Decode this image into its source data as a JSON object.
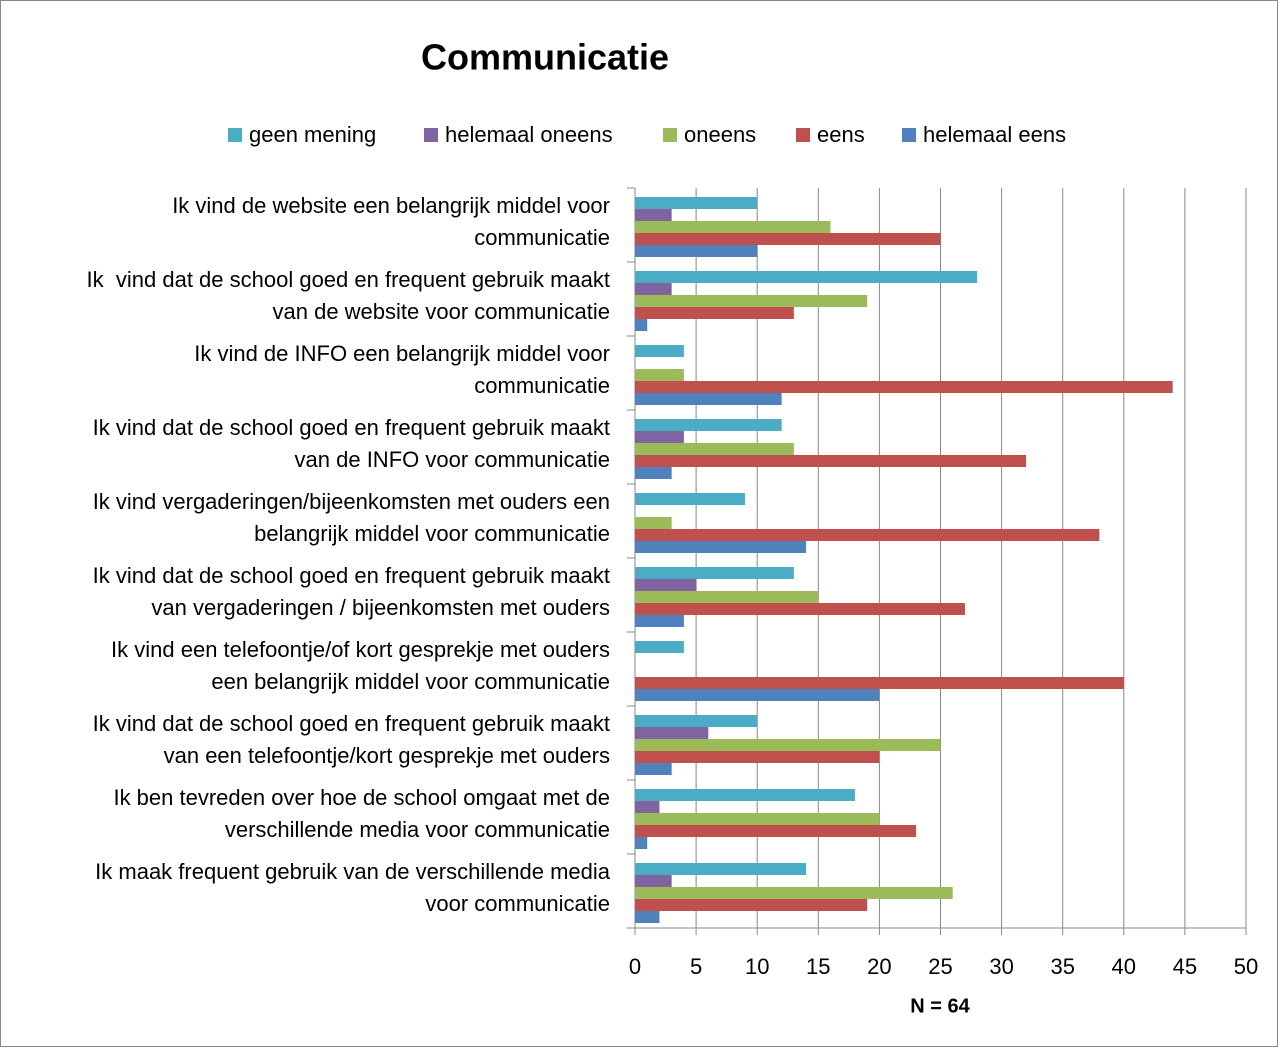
{
  "chart_data": {
    "type": "hbar",
    "title": "Communicatie",
    "x_label": "N = 64",
    "categories": [
      [
        "Ik vind de website een belangrijk middel voor",
        "communicatie"
      ],
      [
        "Ik  vind dat de school goed en frequent gebruik maakt",
        "van de website voor communicatie"
      ],
      [
        "Ik vind de INFO een belangrijk middel voor",
        "communicatie"
      ],
      [
        "Ik vind dat de school goed en frequent gebruik maakt",
        "van de INFO voor communicatie"
      ],
      [
        "Ik vind vergaderingen/bijeenkomsten met ouders een",
        "belangrijk middel voor communicatie"
      ],
      [
        "Ik vind dat de school goed en frequent gebruik maakt",
        "van vergaderingen / bijeenkomsten met ouders"
      ],
      [
        "Ik vind een telefoontje/of kort gesprekje met ouders",
        "een belangrijk middel voor communicatie"
      ],
      [
        "Ik vind dat de school goed en frequent gebruik maakt",
        "van een telefoontje/kort gesprekje met ouders"
      ],
      [
        "Ik ben tevreden over hoe de school omgaat met de",
        "verschillende media voor communicatie"
      ],
      [
        "Ik maak frequent gebruik van de verschillende media",
        "voor communicatie"
      ]
    ],
    "series": [
      {
        "name": "geen mening",
        "color": "#4bacc6",
        "values": [
          10,
          28,
          4,
          12,
          9,
          13,
          4,
          10,
          18,
          14
        ]
      },
      {
        "name": "helemaal oneens",
        "color": "#8064a2",
        "values": [
          3,
          3,
          0,
          4,
          0,
          5,
          0,
          6,
          2,
          3
        ]
      },
      {
        "name": "oneens",
        "color": "#9bbb59",
        "values": [
          16,
          19,
          4,
          13,
          3,
          15,
          0,
          25,
          20,
          26
        ]
      },
      {
        "name": "eens",
        "color": "#c0504d",
        "values": [
          25,
          13,
          44,
          32,
          38,
          27,
          40,
          20,
          23,
          19
        ]
      },
      {
        "name": "helemaal eens",
        "color": "#4f81bd",
        "values": [
          10,
          1,
          12,
          3,
          14,
          4,
          20,
          3,
          1,
          2
        ]
      }
    ],
    "xlim": [
      0,
      50
    ],
    "xticks": [
      0,
      5,
      10,
      15,
      20,
      25,
      30,
      35,
      40,
      45,
      50
    ],
    "grid": true,
    "legend": "top"
  }
}
